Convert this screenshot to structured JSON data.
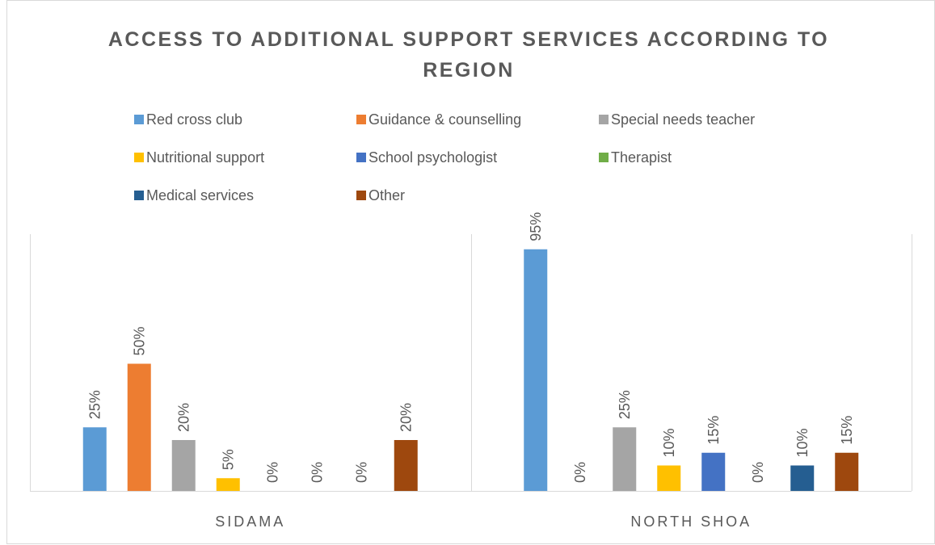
{
  "chart_data": {
    "type": "bar",
    "title": "ACCESS TO ADDITIONAL SUPPORT SERVICES ACCORDING TO REGION",
    "categories": [
      "SIDAMA",
      "NORTH SHOA"
    ],
    "ylim": [
      0,
      100
    ],
    "legend": "top",
    "series": [
      {
        "name": "Red cross club",
        "color": "#5b9bd5",
        "values": [
          25,
          95
        ],
        "value_labels": [
          "25%",
          "95%"
        ]
      },
      {
        "name": "Guidance & counselling",
        "color": "#ed7d31",
        "values": [
          50,
          0
        ],
        "value_labels": [
          "50%",
          "0%"
        ]
      },
      {
        "name": "Special needs teacher",
        "color": "#a5a5a5",
        "values": [
          20,
          25
        ],
        "value_labels": [
          "20%",
          "25%"
        ]
      },
      {
        "name": "Nutritional support",
        "color": "#ffc000",
        "values": [
          5,
          10
        ],
        "value_labels": [
          "5%",
          "10%"
        ]
      },
      {
        "name": "School psychologist",
        "color": "#4472c4",
        "values": [
          0,
          15
        ],
        "value_labels": [
          "0%",
          "15%"
        ]
      },
      {
        "name": "Therapist",
        "color": "#70ad47",
        "values": [
          0,
          0
        ],
        "value_labels": [
          "0%",
          "0%"
        ]
      },
      {
        "name": "Medical services",
        "color": "#255e91",
        "values": [
          0,
          10
        ],
        "value_labels": [
          "0%",
          "10%"
        ]
      },
      {
        "name": "Other",
        "color": "#9e480e",
        "values": [
          20,
          15
        ],
        "value_labels": [
          "20%",
          "15%"
        ]
      }
    ]
  }
}
